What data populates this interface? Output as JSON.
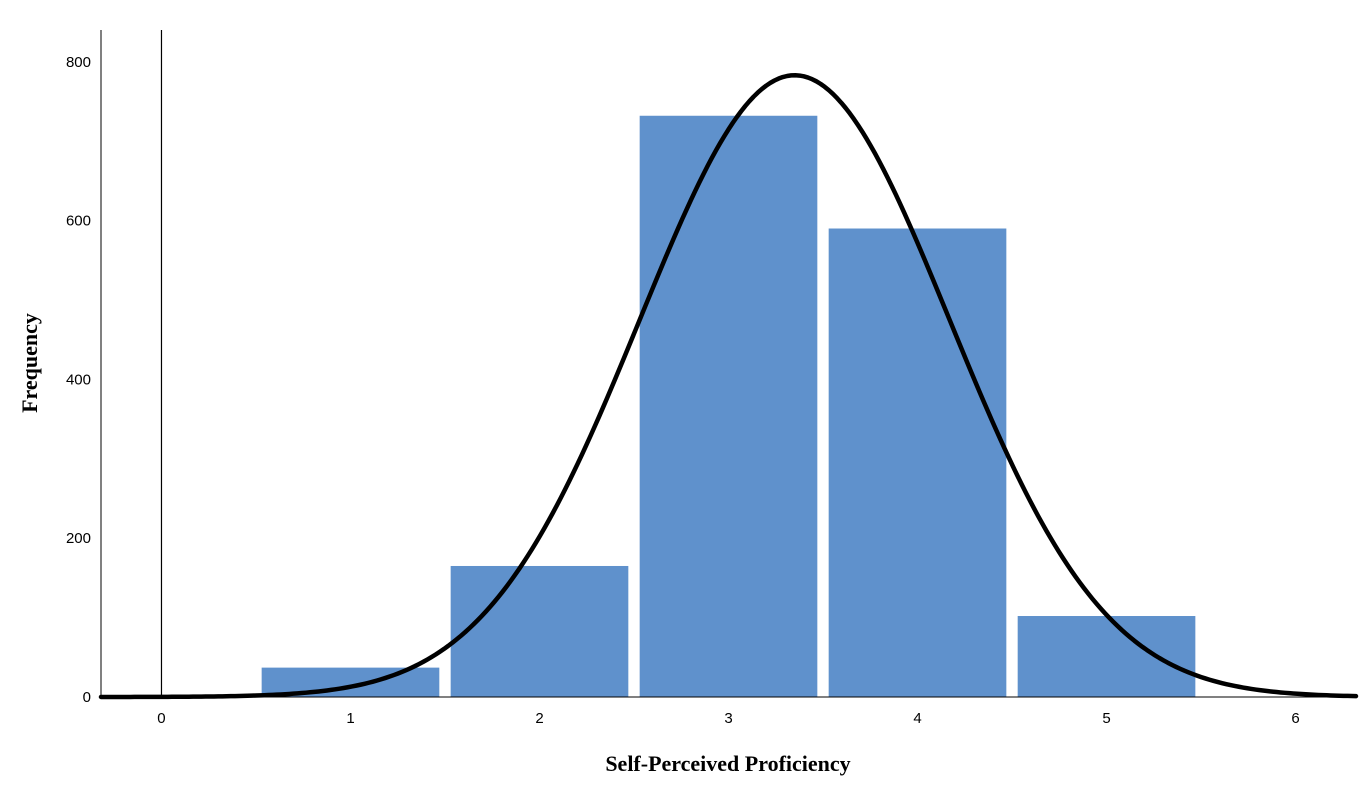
{
  "chart_data": {
    "type": "bar",
    "xlabel": "Self-Perceived Proficiency",
    "ylabel": "Frequency",
    "categories": [
      1,
      2,
      3,
      4,
      5
    ],
    "values": [
      37,
      165,
      732,
      590,
      102
    ],
    "bar_color": "#5f91cc",
    "xlim": [
      -0.32,
      6.32
    ],
    "ylim": [
      0,
      840
    ],
    "x_ticks": [
      0,
      1,
      2,
      3,
      4,
      5,
      6
    ],
    "y_ticks": [
      0,
      200,
      400,
      600,
      800
    ],
    "normal_curve": {
      "mean": 3.35,
      "sd": 0.82,
      "peak": 783,
      "color": "#000000"
    },
    "grid": false,
    "legend": "none"
  }
}
